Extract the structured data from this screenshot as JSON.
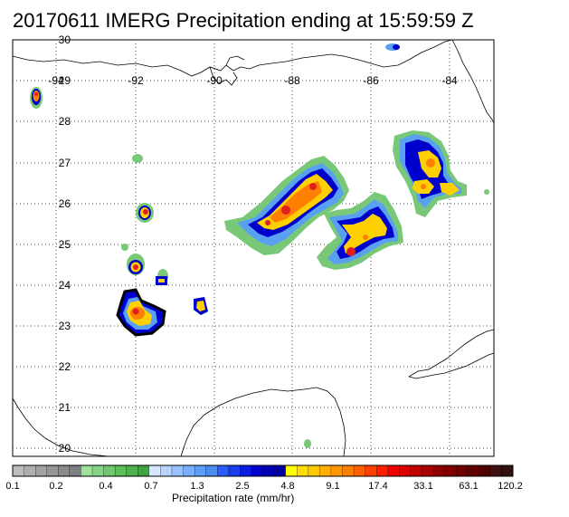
{
  "title": "20170611 IMERG Precipitation ending at 15:59:59 Z",
  "map": {
    "lon_ticks": [
      "-94",
      "-92",
      "-90",
      "-88",
      "-86",
      "-84"
    ],
    "lat_ticks": [
      "30",
      "29",
      "28",
      "27",
      "26",
      "25",
      "24",
      "23",
      "22",
      "21",
      "20"
    ],
    "gridlines": true
  },
  "colorbar": {
    "title": "Precipitation rate (mm/hr)",
    "labels": [
      "0.1",
      "0.2",
      "0.4",
      "0.7",
      "1.3",
      "2.5",
      "4.8",
      "9.1",
      "17.4",
      "33.1",
      "63.1",
      "120.2"
    ],
    "colors": [
      "#bdbdbd",
      "#b0b0b0",
      "#a3a3a3",
      "#969696",
      "#8a8a8a",
      "#7e7e7e",
      "#9fe09f",
      "#86d486",
      "#6dc86d",
      "#5cbf5c",
      "#4cb24c",
      "#3fa53f",
      "#d8e6ff",
      "#b8d4ff",
      "#98c2ff",
      "#78b0ff",
      "#5c9ef8",
      "#4a8cf0",
      "#2a5cff",
      "#1a3cf0",
      "#0a1ce0",
      "#0000d0",
      "#0000b8",
      "#0000a0",
      "#ffff00",
      "#ffe000",
      "#ffc800",
      "#ffb000",
      "#ff9800",
      "#ff8000",
      "#ff6000",
      "#ff4000",
      "#ff2000",
      "#f00000",
      "#d80000",
      "#c00000",
      "#a80000",
      "#900000",
      "#800000",
      "#700000",
      "#600000",
      "#500000",
      "#401010",
      "#301010"
    ]
  },
  "colors": {
    "light": "#78c878",
    "medium": "#5aa0f0",
    "strong": "#0000cd",
    "heavy": "#ffd000",
    "very_heavy": "#ff8000",
    "extreme": "#e02020"
  }
}
